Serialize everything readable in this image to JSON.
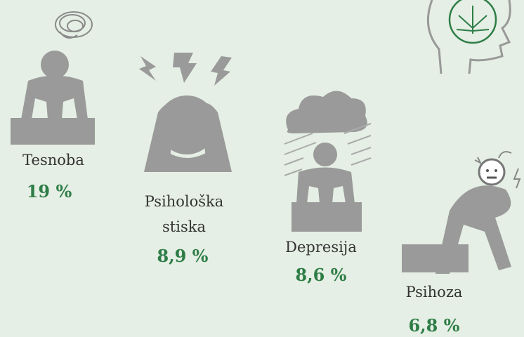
{
  "items": [
    {
      "label": "Tesnoba",
      "value": "19 %"
    },
    {
      "label": "Psihološka stiska",
      "value": "8,9 %"
    },
    {
      "label": "Depresija",
      "value": "8,6 %"
    },
    {
      "label": "Psihoza",
      "value": "6,8 %"
    }
  ]
}
